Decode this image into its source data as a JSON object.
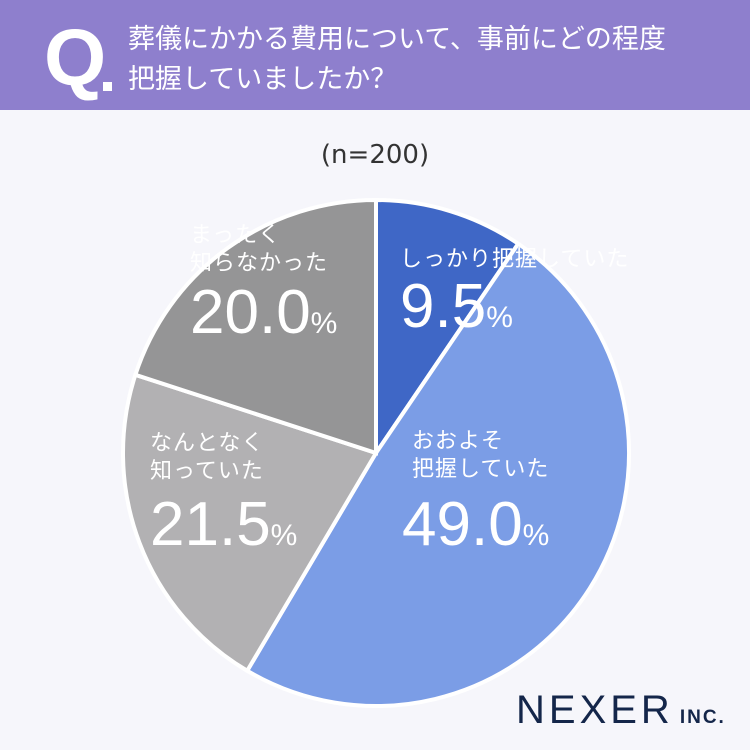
{
  "header": {
    "q_mark": "Q",
    "title_line1": "葬儀にかかる費用について、事前にどの程度",
    "title_line2": "把握していましたか？"
  },
  "sample": "(n=200)",
  "labels": [
    {
      "l1": "しっかり把握していた",
      "l2": "",
      "value": "9.5",
      "unit": "%"
    },
    {
      "l1": "おおよそ",
      "l2": "把握していた",
      "value": "49.0",
      "unit": "%"
    },
    {
      "l1": "なんとなく",
      "l2": "知っていた",
      "value": "21.5",
      "unit": "%"
    },
    {
      "l1": "まったく",
      "l2": "知らなかった",
      "value": "20.0",
      "unit": "%"
    }
  ],
  "logo": {
    "name": "NEXER",
    "suffix": "INC."
  },
  "chart_data": {
    "type": "pie",
    "title": "葬儀にかかる費用について、事前にどの程度把握していましたか？",
    "subtitle": "(n=200)",
    "categories": [
      "しっかり把握していた",
      "おおよそ把握していた",
      "なんとなく知っていた",
      "まったく知らなかった"
    ],
    "values": [
      9.5,
      49.0,
      21.5,
      20.0
    ],
    "colors": [
      "#3f67c6",
      "#7b9de6",
      "#b2b1b3",
      "#959596"
    ],
    "start_angle": "12 o'clock, clockwise"
  }
}
